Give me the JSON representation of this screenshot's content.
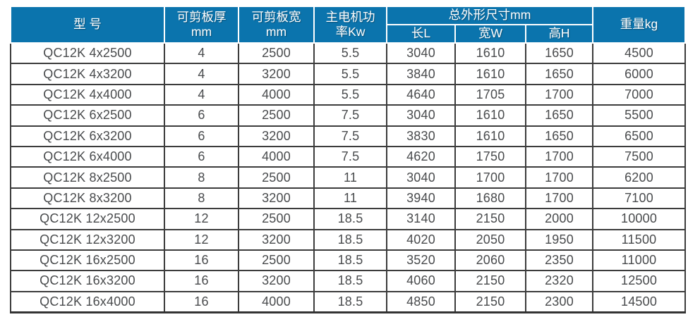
{
  "colors": {
    "header_bg": "#0b74ad",
    "header_text": "#ffffff",
    "body_border": "#3c3c3c",
    "body_text": "#494b4d"
  },
  "table": {
    "header": {
      "model": "型 号",
      "thickness": [
        "可剪板厚",
        "mm"
      ],
      "plate_width": [
        "可剪板宽",
        "mm"
      ],
      "power": [
        "主电机功",
        "率Kw"
      ],
      "dims_group": "总外形尺寸mm",
      "dims_sub": [
        "长L",
        "宽W",
        "高H"
      ],
      "weight": "重量kg"
    },
    "rows": [
      [
        "QC12K 4x2500",
        "4",
        "2500",
        "5.5",
        "3040",
        "1610",
        "1650",
        "4500"
      ],
      [
        "QC12K 4x3200",
        "4",
        "3200",
        "5.5",
        "3840",
        "1610",
        "1650",
        "6000"
      ],
      [
        "QC12K 4x4000",
        "4",
        "4000",
        "5.5",
        "4640",
        "1705",
        "1700",
        "7000"
      ],
      [
        "QC12K 6x2500",
        "6",
        "2500",
        "7.5",
        "3040",
        "1610",
        "1650",
        "5500"
      ],
      [
        "QC12K 6x3200",
        "6",
        "3200",
        "7.5",
        "3830",
        "1610",
        "1650",
        "6500"
      ],
      [
        "QC12K 6x4000",
        "6",
        "4000",
        "7.5",
        "4620",
        "1750",
        "1700",
        "7500"
      ],
      [
        "QC12K 8x2500",
        "8",
        "2500",
        "11",
        "3040",
        "1700",
        "1700",
        "6200"
      ],
      [
        "QC12K 8x3200",
        "8",
        "3200",
        "11",
        "3940",
        "1680",
        "1700",
        "7100"
      ],
      [
        "QC12K 12x2500",
        "12",
        "2500",
        "18.5",
        "3140",
        "2150",
        "2000",
        "10000"
      ],
      [
        "QC12K 12x3200",
        "12",
        "3200",
        "18.5",
        "4020",
        "2050",
        "1950",
        "11500"
      ],
      [
        "QC12K 16x2500",
        "16",
        "2500",
        "18.5",
        "3520",
        "2060",
        "2350",
        "11000"
      ],
      [
        "QC12K 16x3200",
        "16",
        "3200",
        "18.5",
        "4060",
        "2150",
        "2320",
        "12500"
      ],
      [
        "QC12K 16x4000",
        "16",
        "4000",
        "18.5",
        "4850",
        "2150",
        "2300",
        "14500"
      ]
    ],
    "column_keys": [
      "model",
      "shear-thickness",
      "shear-width",
      "motor-power",
      "length-L",
      "width-W",
      "height-H",
      "weight"
    ]
  }
}
